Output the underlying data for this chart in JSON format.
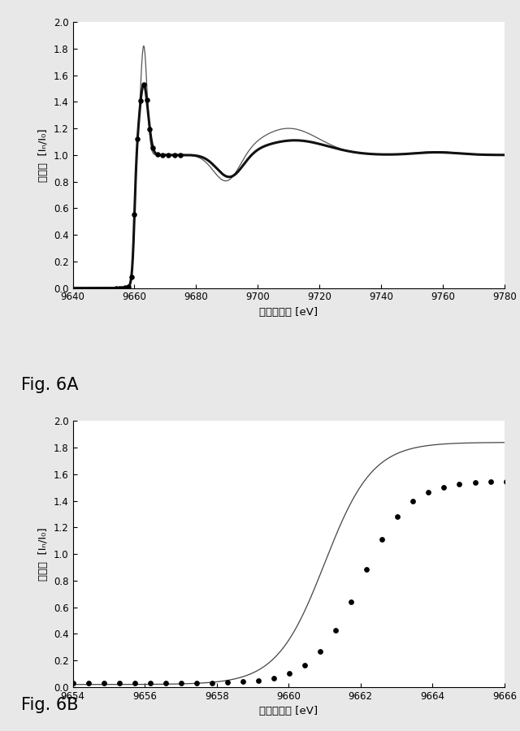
{
  "fig6a": {
    "xmin": 9640,
    "xmax": 9780,
    "ymin": 0.0,
    "ymax": 2.0,
    "xticks": [
      9640,
      9660,
      9680,
      9700,
      9720,
      9740,
      9760,
      9780
    ],
    "yticks": [
      0.0,
      0.2,
      0.4,
      0.6,
      0.8,
      1.0,
      1.2,
      1.4,
      1.6,
      1.8,
      2.0
    ],
    "xlabel": "エネルギー [eV]",
    "ylabel": "正規化  [Iₙ/I₀]",
    "fig_label": "Fig. 6A"
  },
  "fig6b": {
    "xmin": 9654,
    "xmax": 9666,
    "ymin": 0.0,
    "ymax": 2.0,
    "xticks": [
      9654,
      9656,
      9658,
      9660,
      9662,
      9664,
      9666
    ],
    "yticks": [
      0.0,
      0.2,
      0.4,
      0.6,
      0.8,
      1.0,
      1.2,
      1.4,
      1.6,
      1.8,
      2.0
    ],
    "xlabel": "エネルギー [eV]",
    "ylabel": "正規化  [Iₙ/I₀]",
    "fig_label": "Fig. 6B"
  },
  "background_color": "#e8e8e8",
  "plot_bg": "#ffffff"
}
